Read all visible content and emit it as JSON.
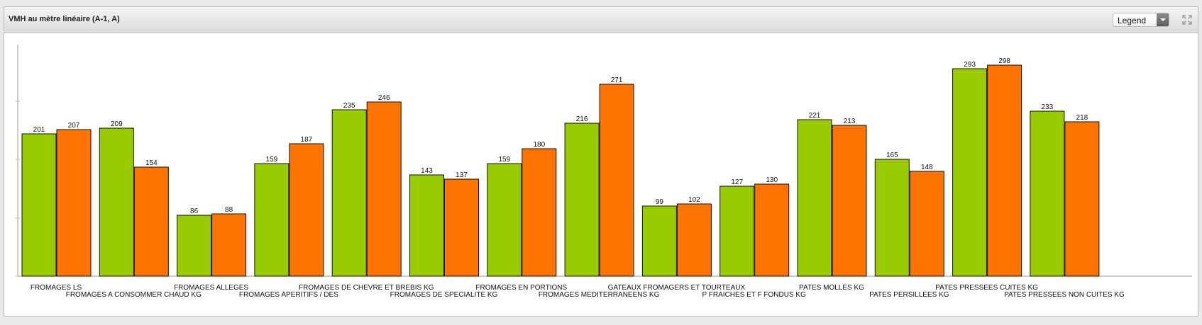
{
  "panel": {
    "title": "VMH au mètre linéaire (A-1, A)",
    "legend_select": "Legend"
  },
  "chart_data": {
    "type": "bar",
    "title": "VMH au mètre linéaire (A-1, A)",
    "categories": [
      "FROMAGES LS",
      "FROMAGES A CONSOMMER CHAUD KG",
      "FROMAGES ALLEGES",
      "FROMAGES APERITIFS / DES",
      "FROMAGES DE CHEVRE ET BREBIS KG",
      "FROMAGES DE SPECIALITE KG",
      "FROMAGES EN PORTIONS",
      "FROMAGES MEDITERRANEENS KG",
      "GATEAUX FROMAGERS ET TOURTEAUX",
      "P FRAICHES ET F FONDUS KG",
      "PATES MOLLES KG",
      "PATES PERSILLEES KG",
      "PATES PRESSEES CUITES KG",
      "PATES PRESSEES NON CUITES KG"
    ],
    "series": [
      {
        "values": [
          201,
          209,
          86,
          159,
          235,
          143,
          159,
          216,
          99,
          127,
          221,
          165,
          293,
          233
        ],
        "color": "#99cc00"
      },
      {
        "values": [
          207,
          154,
          88,
          187,
          246,
          137,
          180,
          271,
          102,
          130,
          213,
          148,
          298,
          218
        ],
        "color": "#ff7300"
      }
    ],
    "ylim": [
      0,
      360
    ],
    "grid": false,
    "legend": "hidden",
    "data_labels": true
  }
}
